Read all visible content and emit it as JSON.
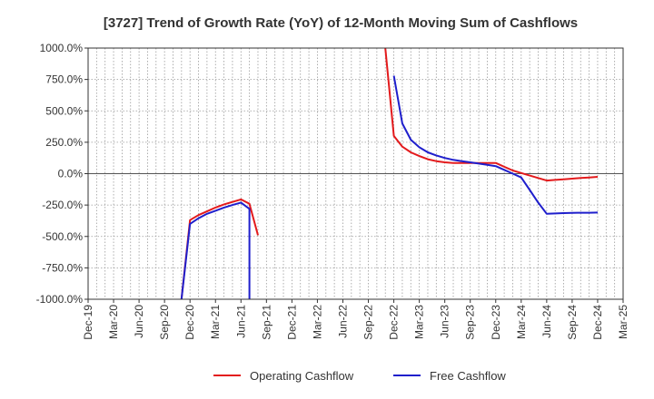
{
  "chart_data": {
    "type": "line",
    "title": "[3727]  Trend of Growth Rate (YoY) of 12-Month Moving Sum of Cashflows",
    "xlabel": "",
    "ylabel": "",
    "ylim": [
      -1000,
      1000
    ],
    "yticks": [
      1000,
      750,
      500,
      250,
      0,
      -250,
      -500,
      -750,
      -1000
    ],
    "ytick_labels": [
      "1000.0%",
      "750.0%",
      "500.0%",
      "250.0%",
      "0.0%",
      "-250.0%",
      "-500.0%",
      "-750.0%",
      "-1000.0%"
    ],
    "xtick_labels": [
      "Dec-19",
      "Mar-20",
      "Jun-20",
      "Sep-20",
      "Dec-20",
      "Mar-21",
      "Jun-21",
      "Sep-21",
      "Dec-21",
      "Mar-22",
      "Jun-22",
      "Sep-22",
      "Dec-22",
      "Mar-23",
      "Jun-23",
      "Sep-23",
      "Dec-23",
      "Mar-24",
      "Jun-24",
      "Sep-24",
      "Dec-24",
      "Mar-25"
    ],
    "grid": true,
    "legend_position": "bottom",
    "series": [
      {
        "name": "Operating Cashflow",
        "color": "#e31a1c",
        "segments": [
          [
            {
              "x": "Nov-20",
              "y": -1000
            },
            {
              "x": "Dec-20",
              "y": -370
            },
            {
              "x": "Jan-21",
              "y": -330
            },
            {
              "x": "Feb-21",
              "y": -300
            },
            {
              "x": "Mar-21",
              "y": -270
            },
            {
              "x": "Apr-21",
              "y": -245
            },
            {
              "x": "May-21",
              "y": -225
            },
            {
              "x": "Jun-21",
              "y": -205
            },
            {
              "x": "Jul-21",
              "y": -240
            },
            {
              "x": "Aug-21",
              "y": -490
            }
          ],
          [
            {
              "x": "Nov-22",
              "y": 1000
            },
            {
              "x": "Dec-22",
              "y": 300
            },
            {
              "x": "Jan-23",
              "y": 215
            },
            {
              "x": "Feb-23",
              "y": 170
            },
            {
              "x": "Mar-23",
              "y": 140
            },
            {
              "x": "Apr-23",
              "y": 115
            },
            {
              "x": "May-23",
              "y": 100
            },
            {
              "x": "Jun-23",
              "y": 90
            },
            {
              "x": "Jul-23",
              "y": 85
            },
            {
              "x": "Aug-23",
              "y": 85
            },
            {
              "x": "Sep-23",
              "y": 85
            },
            {
              "x": "Oct-23",
              "y": 85
            },
            {
              "x": "Nov-23",
              "y": 85
            },
            {
              "x": "Dec-23",
              "y": 85
            },
            {
              "x": "Jan-24",
              "y": 55
            },
            {
              "x": "Feb-24",
              "y": 25
            },
            {
              "x": "Mar-24",
              "y": 5
            },
            {
              "x": "Apr-24",
              "y": -15
            },
            {
              "x": "May-24",
              "y": -35
            },
            {
              "x": "Jun-24",
              "y": -55
            },
            {
              "x": "Jul-24",
              "y": -50
            },
            {
              "x": "Aug-24",
              "y": -45
            },
            {
              "x": "Sep-24",
              "y": -40
            },
            {
              "x": "Oct-24",
              "y": -35
            },
            {
              "x": "Nov-24",
              "y": -30
            },
            {
              "x": "Dec-24",
              "y": -25
            }
          ]
        ]
      },
      {
        "name": "Free Cashflow",
        "color": "#1f1fcc",
        "segments": [
          [
            {
              "x": "Nov-20",
              "y": -1000
            },
            {
              "x": "Dec-20",
              "y": -400
            },
            {
              "x": "Jan-21",
              "y": -355
            },
            {
              "x": "Feb-21",
              "y": -320
            },
            {
              "x": "Mar-21",
              "y": -295
            },
            {
              "x": "Apr-21",
              "y": -270
            },
            {
              "x": "May-21",
              "y": -250
            },
            {
              "x": "Jun-21",
              "y": -230
            },
            {
              "x": "Jul-21",
              "y": -280
            },
            {
              "x": "Jul-21",
              "y": -1000
            }
          ],
          [
            {
              "x": "Dec-22",
              "y": 780
            },
            {
              "x": "Jan-23",
              "y": 400
            },
            {
              "x": "Feb-23",
              "y": 270
            },
            {
              "x": "Mar-23",
              "y": 210
            },
            {
              "x": "Apr-23",
              "y": 170
            },
            {
              "x": "May-23",
              "y": 145
            },
            {
              "x": "Jun-23",
              "y": 125
            },
            {
              "x": "Jul-23",
              "y": 110
            },
            {
              "x": "Aug-23",
              "y": 100
            },
            {
              "x": "Sep-23",
              "y": 90
            },
            {
              "x": "Oct-23",
              "y": 80
            },
            {
              "x": "Nov-23",
              "y": 70
            },
            {
              "x": "Dec-23",
              "y": 60
            },
            {
              "x": "Jan-24",
              "y": 30
            },
            {
              "x": "Feb-24",
              "y": 0
            },
            {
              "x": "Mar-24",
              "y": -30
            },
            {
              "x": "Apr-24",
              "y": -130
            },
            {
              "x": "May-24",
              "y": -230
            },
            {
              "x": "Jun-24",
              "y": -320
            },
            {
              "x": "Jul-24",
              "y": -317
            },
            {
              "x": "Aug-24",
              "y": -314
            },
            {
              "x": "Sep-24",
              "y": -312
            },
            {
              "x": "Oct-24",
              "y": -311
            },
            {
              "x": "Nov-24",
              "y": -311
            },
            {
              "x": "Dec-24",
              "y": -310
            }
          ]
        ]
      }
    ]
  }
}
